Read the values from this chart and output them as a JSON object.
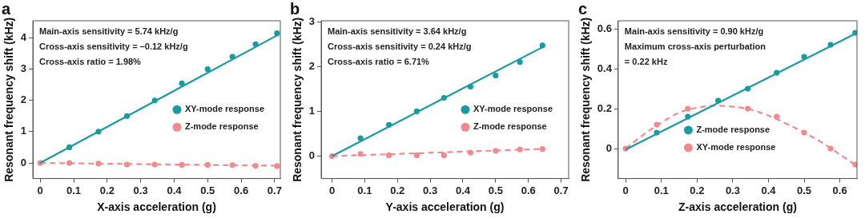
{
  "chart_data": [
    {
      "type": "scatter",
      "title": "a",
      "xlabel": "X-axis acceleration (g)",
      "ylabel": "Resonant frequency shift (kHz)",
      "xlim": [
        -0.022,
        0.717
      ],
      "xticks": [
        0,
        0.1,
        0.2,
        0.3,
        0.4,
        0.5,
        0.6,
        0.7
      ],
      "ylim": [
        -0.5,
        4.55
      ],
      "yticks": [
        0,
        1,
        2,
        3,
        4
      ],
      "grid": false,
      "legend": "right",
      "marker": "circle",
      "annotations": [
        "Main-axis sensitivity = 5.74 kHz/g",
        "Cross-axis sensitivity = –0.12 kHz/g",
        "Cross-axis ratio = 1.98%"
      ],
      "series": [
        {
          "type": "line",
          "color": "#1a9ba1",
          "line_style": "solid",
          "marker": "none",
          "x": [
            0,
            0.707
          ],
          "values": [
            0,
            4.08
          ]
        },
        {
          "type": "line",
          "color": "#f08a8f",
          "line_style": "dashed",
          "marker": "none",
          "x": [
            0,
            0.707
          ],
          "values": [
            0,
            -0.09
          ]
        },
        {
          "name": "XY-mode response",
          "color": "#1a9ba1",
          "x": [
            0.087,
            0.174,
            0.259,
            0.342,
            0.423,
            0.5,
            0.574,
            0.643,
            0.707
          ],
          "values": [
            0.5,
            1.0,
            1.5,
            2.0,
            2.55,
            3.0,
            3.4,
            3.8,
            4.15
          ]
        },
        {
          "name": "Z-mode response",
          "color": "#f08a8f",
          "x": [
            0,
            0.087,
            0.174,
            0.259,
            0.342,
            0.423,
            0.5,
            0.574,
            0.643,
            0.707
          ],
          "values": [
            0,
            0,
            -0.02,
            -0.05,
            -0.05,
            -0.06,
            -0.06,
            -0.07,
            -0.09,
            -0.1
          ]
        }
      ]
    },
    {
      "type": "scatter",
      "title": "b",
      "xlabel": "Y-axis acceleration (g)",
      "ylabel": "Resonant frequency shift (kHz)",
      "xlim": [
        -0.033,
        0.723
      ],
      "xticks": [
        0,
        0.1,
        0.2,
        0.3,
        0.4,
        0.5,
        0.6,
        0.7
      ],
      "ylim": [
        -0.5,
        3.02
      ],
      "yticks": [
        0,
        1,
        2,
        3
      ],
      "grid": false,
      "legend": "right",
      "marker": "circle",
      "annotations": [
        "Main-axis sensitivity = 3.64 kHz/g",
        "Cross-axis sensitivity = 0.24 kHz/g",
        "Cross-axis ratio = 6.71%"
      ],
      "series": [
        {
          "type": "line",
          "color": "#1a9ba1",
          "line_style": "solid",
          "marker": "none",
          "x": [
            0,
            0.643
          ],
          "values": [
            0,
            2.43
          ]
        },
        {
          "type": "line",
          "color": "#f08a8f",
          "line_style": "dashed",
          "marker": "none",
          "x": [
            0,
            0.643
          ],
          "values": [
            0,
            0.16
          ]
        },
        {
          "name": "XY-mode response",
          "color": "#1a9ba1",
          "x": [
            0.087,
            0.174,
            0.259,
            0.342,
            0.423,
            0.5,
            0.574,
            0.643
          ],
          "values": [
            0.4,
            0.7,
            1.0,
            1.3,
            1.55,
            1.8,
            2.1,
            2.47
          ]
        },
        {
          "name": "Z-mode response",
          "color": "#f08a8f",
          "x": [
            0,
            0.087,
            0.174,
            0.259,
            0.342,
            0.423,
            0.5,
            0.574,
            0.643
          ],
          "values": [
            0,
            0.05,
            0.02,
            0.02,
            0.02,
            0.08,
            0.12,
            0.15,
            0.16
          ]
        }
      ]
    },
    {
      "type": "scatter",
      "title": "c",
      "xlabel": "Z-axis acceleration (g)",
      "ylabel": "Resonant frequency shift (kHz)",
      "xlim": [
        -0.021,
        0.648
      ],
      "xticks": [
        0,
        0.1,
        0.2,
        0.3,
        0.4,
        0.5,
        0.6
      ],
      "ylim": [
        -0.15,
        0.64
      ],
      "yticks": [
        0,
        0.2,
        0.4,
        0.6
      ],
      "grid": false,
      "legend": "bottom",
      "marker": "circle",
      "annotations": [
        "Main-axis sensitivity = 0.90 kHz/g",
        "Maximum cross-axis perturbation",
        "= 0.22 kHz"
      ],
      "series": [
        {
          "type": "line",
          "color": "#1a9ba1",
          "line_style": "solid",
          "marker": "none",
          "x": [
            0,
            0.643
          ],
          "values": [
            -0.005,
            0.575
          ]
        },
        {
          "type": "line",
          "color": "#f08a8f",
          "line_style": "dashed",
          "marker": "none",
          "x": [
            0,
            0.05,
            0.1,
            0.15,
            0.2,
            0.25,
            0.3,
            0.35,
            0.4,
            0.45,
            0.5,
            0.55,
            0.6,
            0.643
          ],
          "values": [
            0,
            0.07,
            0.13,
            0.18,
            0.205,
            0.215,
            0.21,
            0.195,
            0.165,
            0.125,
            0.08,
            0.03,
            -0.03,
            -0.08
          ]
        },
        {
          "name": "Z-mode response",
          "color": "#1a9ba1",
          "x": [
            0.087,
            0.174,
            0.259,
            0.342,
            0.423,
            0.5,
            0.574,
            0.643
          ],
          "values": [
            0.08,
            0.16,
            0.24,
            0.3,
            0.38,
            0.46,
            0.52,
            0.58
          ]
        },
        {
          "name": "XY-mode response",
          "color": "#f08a8f",
          "x": [
            0,
            0.087,
            0.174,
            0.342,
            0.423,
            0.5,
            0.574,
            0.643
          ],
          "values": [
            0,
            0.12,
            0.2,
            0.2,
            0.16,
            0.08,
            0,
            -0.08
          ]
        }
      ]
    }
  ]
}
